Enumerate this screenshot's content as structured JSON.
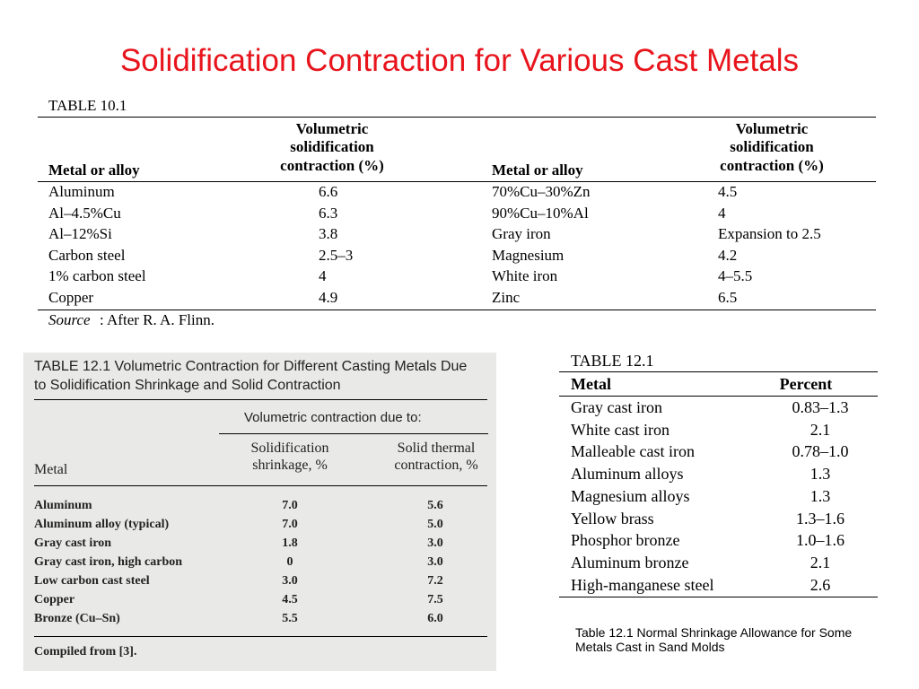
{
  "title": "Solidification Contraction for Various Cast Metals",
  "table_10_1": {
    "label": "TABLE 10.1",
    "headers": [
      "Metal or alloy",
      "Volumetric solidification contraction (%)",
      "Metal or alloy",
      "Volumetric solidification contraction (%)"
    ],
    "rows": [
      [
        "Aluminum",
        "6.6",
        "70%Cu–30%Zn",
        "4.5"
      ],
      [
        "Al–4.5%Cu",
        "6.3",
        "90%Cu–10%Al",
        "4"
      ],
      [
        "Al–12%Si",
        "3.8",
        "Gray iron",
        "Expansion to 2.5"
      ],
      [
        "Carbon steel",
        "2.5–3",
        "Magnesium",
        "4.2"
      ],
      [
        "1% carbon steel",
        "4",
        "White iron",
        "4–5.5"
      ],
      [
        "Copper",
        "4.9",
        "Zinc",
        "6.5"
      ]
    ],
    "source_label": "Source",
    "source_text": ": After R. A. Flinn."
  },
  "scanned_table": {
    "title": "TABLE 12.1 Volumetric Contraction for Different Casting Metals Due to Solidification Shrinkage and Solid Contraction",
    "group_header": "Volumetric contraction due to:",
    "headers": [
      "Metal",
      "Solidification shrinkage, %",
      "Solid thermal contraction, %"
    ],
    "rows": [
      [
        "Aluminum",
        "7.0",
        "5.6"
      ],
      [
        "Aluminum alloy (typical)",
        "7.0",
        "5.0"
      ],
      [
        "Gray cast iron",
        "1.8",
        "3.0"
      ],
      [
        "Gray cast iron, high carbon",
        "0",
        "3.0"
      ],
      [
        "Low carbon cast steel",
        "3.0",
        "7.2"
      ],
      [
        "Copper",
        "4.5",
        "7.5"
      ],
      [
        "Bronze (Cu–Sn)",
        "5.5",
        "6.0"
      ]
    ],
    "footer": "Compiled from [3]."
  },
  "table_12_1": {
    "label": "TABLE 12.1",
    "headers": [
      "Metal",
      "Percent"
    ],
    "rows": [
      [
        "Gray cast iron",
        "0.83–1.3"
      ],
      [
        "White cast iron",
        "2.1"
      ],
      [
        "Malleable cast iron",
        "0.78–1.0"
      ],
      [
        "Aluminum alloys",
        "1.3"
      ],
      [
        "Magnesium alloys",
        "1.3"
      ],
      [
        "Yellow brass",
        "1.3–1.6"
      ],
      [
        "Phosphor bronze",
        "1.0–1.6"
      ],
      [
        "Aluminum bronze",
        "2.1"
      ],
      [
        "High-manganese steel",
        "2.6"
      ]
    ],
    "caption": "Table 12.1  Normal Shrinkage Allowance for Some Metals Cast in Sand Molds"
  }
}
